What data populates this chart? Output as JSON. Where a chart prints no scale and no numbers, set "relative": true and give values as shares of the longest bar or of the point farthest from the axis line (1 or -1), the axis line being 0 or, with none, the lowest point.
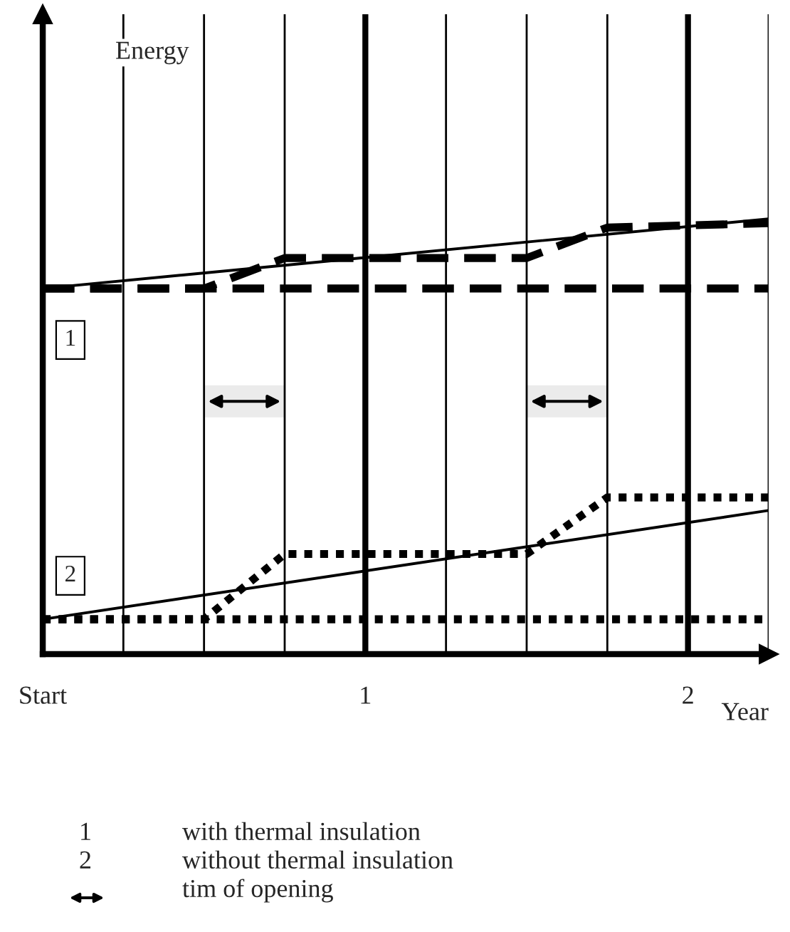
{
  "chart_data": {
    "type": "line",
    "relative": true,
    "xlabel": "Year",
    "grid": "x",
    "xlim": [
      0,
      2.25
    ],
    "xticks": [
      {
        "value": 0,
        "label": "Start"
      },
      {
        "value": 0.25,
        "label": null
      },
      {
        "value": 0.5,
        "label": null
      },
      {
        "value": 0.75,
        "label": null
      },
      {
        "value": 1,
        "label": "1"
      },
      {
        "value": 1.25,
        "label": null
      },
      {
        "value": 1.5,
        "label": null
      },
      {
        "value": 1.75,
        "label": null
      },
      {
        "value": 2,
        "label": "2"
      },
      {
        "value": 2.25,
        "label": null
      }
    ],
    "series": [
      {
        "name": "1",
        "color": "#000000",
        "line_style": "dashed",
        "x": [
          0,
          2.25
        ],
        "values": [
          0.84,
          0.84
        ]
      },
      {
        "color": "#000000",
        "line_style": "solid",
        "x": [
          0,
          2.25
        ],
        "values": [
          0.84,
          1
        ]
      },
      {
        "color": "#000000",
        "line_style": "dashed",
        "x": [
          0,
          0.5,
          0.75,
          1.5,
          1.75,
          2.25
        ],
        "values": [
          0.84,
          0.84,
          0.91,
          0.91,
          0.98,
          0.99
        ]
      },
      {
        "name": "2",
        "color": "#000000",
        "line_style": "dotted",
        "x": [
          0,
          2.25
        ],
        "values": [
          0.08,
          0.08
        ]
      },
      {
        "color": "#000000",
        "line_style": "solid",
        "x": [
          0,
          2.25
        ],
        "values": [
          0.08,
          0.33
        ]
      },
      {
        "color": "#000000",
        "line_style": "dotted",
        "x": [
          0,
          0.5,
          0.75,
          1.5,
          1.75,
          2.25
        ],
        "values": [
          0.08,
          0.08,
          0.23,
          0.23,
          0.36,
          0.36
        ]
      }
    ],
    "bands": [
      {
        "axis": "x",
        "from": 0.5,
        "to": 0.75
      },
      {
        "axis": "x",
        "from": 1.5,
        "to": 1.75
      }
    ],
    "annotations": [
      "Energy",
      "1",
      "with thermal insulation",
      "2",
      "without thermal insulation",
      "tim of opening"
    ]
  }
}
